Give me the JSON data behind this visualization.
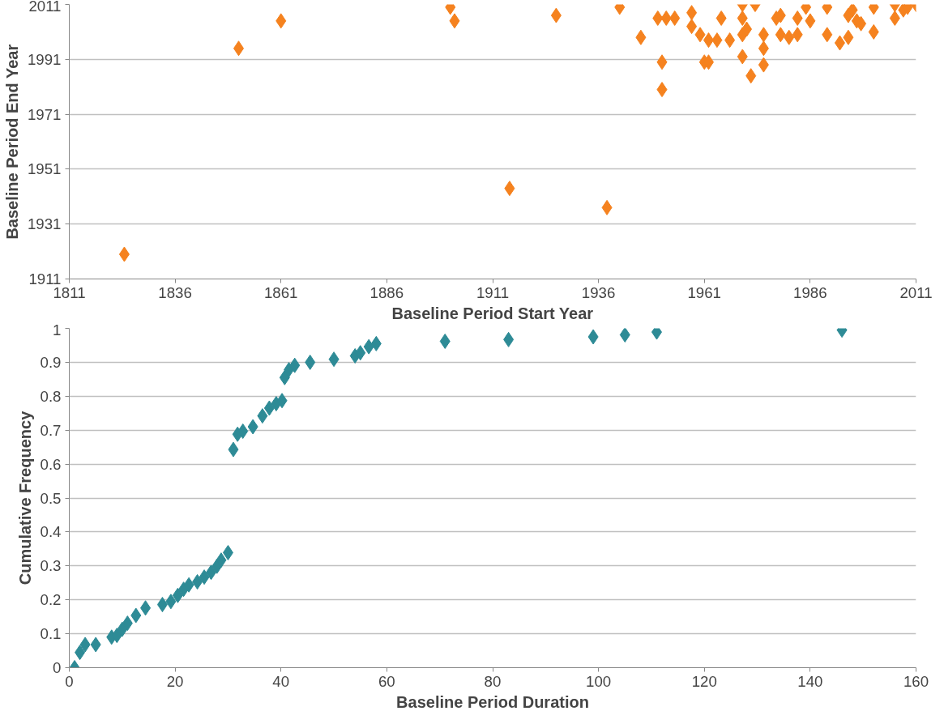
{
  "chart_data": [
    {
      "type": "scatter",
      "xlabel": "Baseline Period Start Year",
      "ylabel": "Baseline Period End Year",
      "marker": "diamond",
      "grid": "y",
      "xlim": [
        1811,
        2011
      ],
      "xticks": [
        1811,
        1836,
        1861,
        1886,
        1911,
        1936,
        1961,
        1986,
        2011
      ],
      "ylim": [
        1911,
        2011
      ],
      "yticks": [
        1911,
        1931,
        1951,
        1971,
        1991,
        2011
      ],
      "series": [
        {
          "color": "#f5821f",
          "x": [
            1824,
            1851,
            1861,
            1901,
            1902,
            1915,
            1926,
            1938,
            1941,
            1946,
            1950,
            1951,
            1951,
            1952,
            1954,
            1958,
            1958,
            1960,
            1961,
            1962,
            1964,
            1965,
            1962,
            1967,
            1970,
            1970,
            1970,
            1970,
            1973,
            1971,
            1975,
            1975,
            1975,
            1972,
            1978,
            1979,
            1979,
            1981,
            1983,
            1983,
            1985,
            1986,
            1990,
            1990,
            1993,
            1995,
            1995,
            1996,
            1997,
            1998,
            2001,
            2001,
            2006,
            2006,
            2008,
            2009,
            2011
          ],
          "values": [
            1920,
            1995,
            2005,
            2010,
            2005,
            1944,
            2007,
            1937,
            2010,
            1999,
            2006,
            1990,
            1980,
            2006,
            2006,
            2008,
            2003,
            2000,
            1990,
            1998,
            1998,
            2006,
            1990,
            1998,
            2000,
            2011,
            2006,
            1992,
            2011,
            2002,
            2000,
            1995,
            1989,
            1985,
            2006,
            2007,
            2000,
            1999,
            2006,
            2000,
            2010,
            2005,
            2000,
            2010,
            1997,
            2007,
            1999,
            2009,
            2005,
            2004,
            2010,
            2001,
            2006,
            2011,
            2009,
            2010,
            2011
          ]
        }
      ]
    },
    {
      "type": "scatter",
      "xlabel": "Baseline Period Duration",
      "ylabel": "Cumulative Frequency",
      "marker": "diamond",
      "grid": "y",
      "xlim": [
        0,
        160
      ],
      "xticks": [
        0,
        20,
        40,
        60,
        80,
        100,
        120,
        140,
        160
      ],
      "ylim": [
        0,
        1
      ],
      "yticks": [
        0,
        0.1,
        0.2,
        0.3,
        0.4,
        0.5,
        0.6,
        0.7,
        0.8,
        0.9,
        1
      ],
      "series": [
        {
          "color": "#2e8b96",
          "x": [
            1,
            2,
            3,
            5,
            8,
            9,
            10,
            11,
            12.6,
            14.4,
            17.6,
            19.2,
            20.5,
            21.6,
            22.6,
            24.2,
            25.5,
            26.8,
            27.9,
            28.7,
            30,
            31,
            31.8,
            32.8,
            34.7,
            36.5,
            37.8,
            39.1,
            40.2,
            40.7,
            41.5,
            42.6,
            45.5,
            50,
            54,
            55,
            56.6,
            58,
            71,
            83,
            99,
            105,
            111,
            146
          ],
          "values": [
            0,
            0.045,
            0.068,
            0.068,
            0.09,
            0.095,
            0.113,
            0.131,
            0.154,
            0.176,
            0.186,
            0.195,
            0.213,
            0.231,
            0.244,
            0.253,
            0.267,
            0.281,
            0.299,
            0.317,
            0.339,
            0.643,
            0.688,
            0.697,
            0.71,
            0.742,
            0.765,
            0.778,
            0.787,
            0.855,
            0.878,
            0.891,
            0.9,
            0.909,
            0.919,
            0.928,
            0.946,
            0.955,
            0.962,
            0.967,
            0.975,
            0.981,
            0.989,
            0.995
          ]
        }
      ]
    }
  ]
}
